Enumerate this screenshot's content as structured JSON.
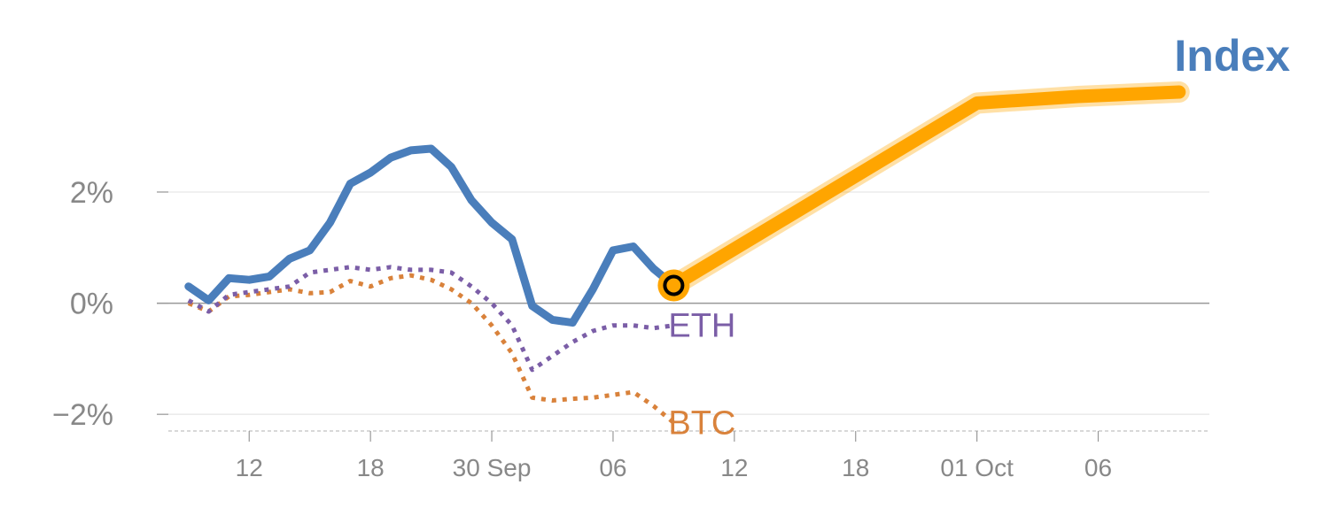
{
  "title": "Index",
  "colors": {
    "index": "#4a7ebb",
    "eth": "#7b5ea7",
    "btc": "#d9823b",
    "projection": "#ffa500",
    "grid": "#e6e6e6",
    "zero": "#999999",
    "tick_text": "#888888"
  },
  "chart_data": {
    "type": "line",
    "title": "Index",
    "y_tick_labels": [
      "2%",
      "0%",
      "−2%"
    ],
    "y_tick_values": [
      2,
      0,
      -2
    ],
    "x_tick_labels": [
      "12",
      "18",
      "30 Sep",
      "06",
      "12",
      "18",
      "01 Oct",
      "06"
    ],
    "x_tick_values": [
      12,
      18,
      24,
      30,
      36,
      42,
      48,
      54
    ],
    "ylim": [
      -2.3,
      4.5
    ],
    "xlim": [
      8,
      59.5
    ],
    "grid": true,
    "series": [
      {
        "key": "index",
        "style": "solid",
        "x": [
          9,
          10,
          11,
          12,
          13,
          14,
          15,
          16,
          17,
          18,
          19,
          20,
          21,
          22,
          23,
          24,
          25,
          26,
          27,
          28,
          29,
          30,
          31,
          32,
          33
        ],
        "y": [
          0.3,
          0.05,
          0.45,
          0.42,
          0.48,
          0.8,
          0.95,
          1.45,
          2.15,
          2.35,
          2.62,
          2.75,
          2.78,
          2.45,
          1.85,
          1.45,
          1.15,
          -0.05,
          -0.3,
          -0.35,
          0.25,
          0.95,
          1.02,
          0.62,
          0.32
        ]
      },
      {
        "key": "eth",
        "name": "ETH",
        "style": "dotted",
        "x": [
          9,
          10,
          11,
          12,
          13,
          14,
          15,
          16,
          17,
          18,
          19,
          20,
          21,
          22,
          23,
          24,
          25,
          26,
          27,
          28,
          29,
          30,
          31,
          32,
          33
        ],
        "y": [
          0.05,
          -0.15,
          0.15,
          0.2,
          0.25,
          0.3,
          0.55,
          0.6,
          0.65,
          0.6,
          0.65,
          0.6,
          0.6,
          0.55,
          0.3,
          0.0,
          -0.4,
          -1.2,
          -0.95,
          -0.7,
          -0.5,
          -0.4,
          -0.4,
          -0.45,
          -0.4
        ]
      },
      {
        "key": "btc",
        "name": "BTC",
        "style": "dotted",
        "x": [
          9,
          10,
          11,
          12,
          13,
          14,
          15,
          16,
          17,
          18,
          19,
          20,
          21,
          22,
          23,
          24,
          25,
          26,
          27,
          28,
          29,
          30,
          31,
          32,
          33
        ],
        "y": [
          0.0,
          -0.15,
          0.12,
          0.15,
          0.2,
          0.25,
          0.18,
          0.2,
          0.4,
          0.3,
          0.45,
          0.5,
          0.42,
          0.25,
          0.0,
          -0.4,
          -0.9,
          -1.7,
          -1.75,
          -1.72,
          -1.7,
          -1.65,
          -1.6,
          -1.85,
          -2.15
        ]
      },
      {
        "key": "projection",
        "style": "thick",
        "x": [
          33,
          48,
          53,
          58
        ],
        "y": [
          0.32,
          3.6,
          3.72,
          3.8
        ]
      }
    ],
    "marker": {
      "x": 33,
      "y": 0.32
    }
  }
}
